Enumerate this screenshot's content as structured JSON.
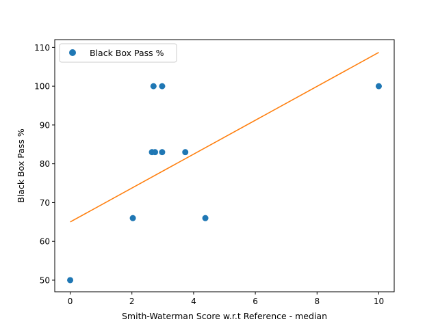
{
  "chart_data": {
    "type": "scatter",
    "title": "",
    "xlabel": "Smith-Waterman Score w.r.t Reference - median",
    "ylabel": "Black Box Pass %",
    "xlim": [
      -0.5,
      10.5
    ],
    "ylim": [
      47,
      112
    ],
    "xticks": [
      0,
      2,
      4,
      6,
      8,
      10
    ],
    "yticks": [
      50,
      60,
      70,
      80,
      90,
      100,
      110
    ],
    "grid": false,
    "legend": {
      "placement": "top-left",
      "entries": [
        "Black Box Pass %"
      ]
    },
    "series": [
      {
        "name": "Black Box Pass %",
        "color": "#1f77b4",
        "marker": "circle",
        "x": [
          0.0,
          2.03,
          2.65,
          2.7,
          2.75,
          2.98,
          2.98,
          3.73,
          4.38,
          10.0
        ],
        "y": [
          50,
          66,
          83,
          100,
          83,
          83,
          100,
          83,
          66,
          100
        ]
      }
    ],
    "fit_line": {
      "color": "#ff7f0e",
      "x": [
        0,
        10
      ],
      "y": [
        65,
        108.7
      ]
    }
  }
}
